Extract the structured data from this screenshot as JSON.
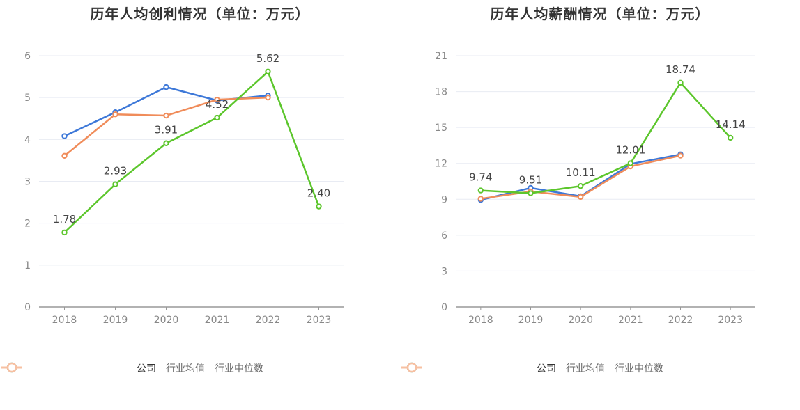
{
  "colors": {
    "company": "#5cc62c",
    "industry_avg": "#3d78d8",
    "industry_median": "#f08c5a",
    "legend_avg_faded": "#9cbbee",
    "legend_median_faded": "#f7c0a2",
    "grid": "#e8ebf3",
    "axis": "#999999",
    "tick_text": "#888888",
    "label_text": "#444444"
  },
  "chart_data": [
    {
      "type": "line",
      "title": "历年人均创利情况（单位：万元）",
      "categories": [
        "2018",
        "2019",
        "2020",
        "2021",
        "2022",
        "2023"
      ],
      "ylim": [
        0,
        6
      ],
      "yticks": [
        0,
        1,
        2,
        3,
        4,
        5,
        6
      ],
      "ytick_labels": [
        "0",
        "1",
        "2",
        "3",
        "4",
        "5",
        "6"
      ],
      "grid": true,
      "legend_position": "bottom",
      "series": [
        {
          "name": "公司",
          "color_key": "company",
          "values": [
            1.78,
            2.93,
            3.91,
            4.52,
            5.62,
            2.4
          ],
          "labels": [
            "1.78",
            "2.93",
            "3.91",
            "4.52",
            "5.62",
            "2.40"
          ]
        },
        {
          "name": "行业均值",
          "color_key": "industry_avg",
          "values": [
            4.08,
            4.65,
            5.25,
            4.93,
            5.05,
            null
          ]
        },
        {
          "name": "行业中位数",
          "color_key": "industry_median",
          "values": [
            3.61,
            4.6,
            4.57,
            4.95,
            5.0,
            null
          ]
        }
      ]
    },
    {
      "type": "line",
      "title": "历年人均薪酬情况（单位：万元）",
      "categories": [
        "2018",
        "2019",
        "2020",
        "2021",
        "2022",
        "2023"
      ],
      "ylim": [
        0,
        21
      ],
      "yticks": [
        0,
        3,
        6,
        9,
        12,
        15,
        18,
        21
      ],
      "ytick_labels": [
        "0",
        "3",
        "6",
        "9",
        "12",
        "15",
        "18",
        "21"
      ],
      "grid": true,
      "legend_position": "bottom",
      "series": [
        {
          "name": "公司",
          "color_key": "company",
          "values": [
            9.74,
            9.51,
            10.11,
            12.01,
            18.74,
            14.14
          ],
          "labels": [
            "9.74",
            "9.51",
            "10.11",
            "12.01",
            "18.74",
            "14.14"
          ]
        },
        {
          "name": "行业均值",
          "color_key": "industry_avg",
          "values": [
            8.95,
            9.95,
            9.25,
            11.95,
            12.75,
            null
          ]
        },
        {
          "name": "行业中位数",
          "color_key": "industry_median",
          "values": [
            9.05,
            9.65,
            9.2,
            11.75,
            12.65,
            null
          ]
        }
      ]
    }
  ],
  "legend": {
    "company": "公司",
    "industry_avg": "行业均值",
    "industry_median": "行业中位数"
  }
}
